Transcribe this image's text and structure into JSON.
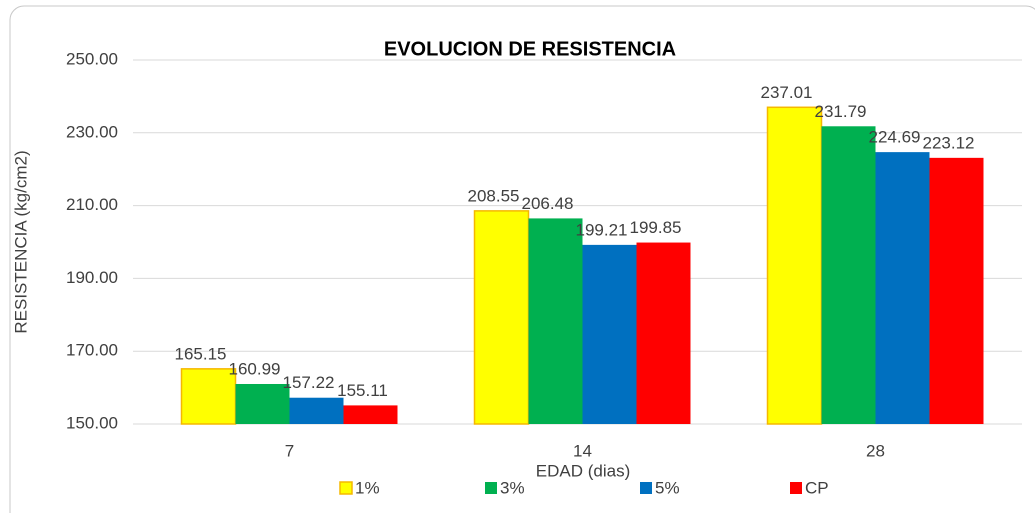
{
  "chart_data": {
    "type": "bar",
    "title": "EVOLUCION DE RESISTENCIA",
    "x_label": "EDAD (dias)",
    "y_label": "RESISTENCIA (kg/cm2)",
    "categories": [
      "7",
      "14",
      "28"
    ],
    "series": [
      {
        "name": "1%",
        "color": "#ffff00",
        "edge": "#f5b800",
        "values": [
          165.15,
          208.55,
          237.01
        ]
      },
      {
        "name": "3%",
        "color": "#00b050",
        "values": [
          160.99,
          206.48,
          231.79
        ]
      },
      {
        "name": "5%",
        "color": "#0070c0",
        "values": [
          157.22,
          199.21,
          224.69
        ]
      },
      {
        "name": "CP",
        "color": "#ff0000",
        "values": [
          155.11,
          199.85,
          223.12
        ]
      }
    ],
    "ylim": [
      150,
      250
    ],
    "yticks": [
      {
        "value": 150,
        "label": "150.00"
      },
      {
        "value": 170,
        "label": "170.00"
      },
      {
        "value": 190,
        "label": "190.00"
      },
      {
        "value": 210,
        "label": "210.00"
      },
      {
        "value": 230,
        "label": "230.00"
      },
      {
        "value": 250,
        "label": "250.00"
      }
    ],
    "grid": true,
    "legend": "bottom"
  }
}
